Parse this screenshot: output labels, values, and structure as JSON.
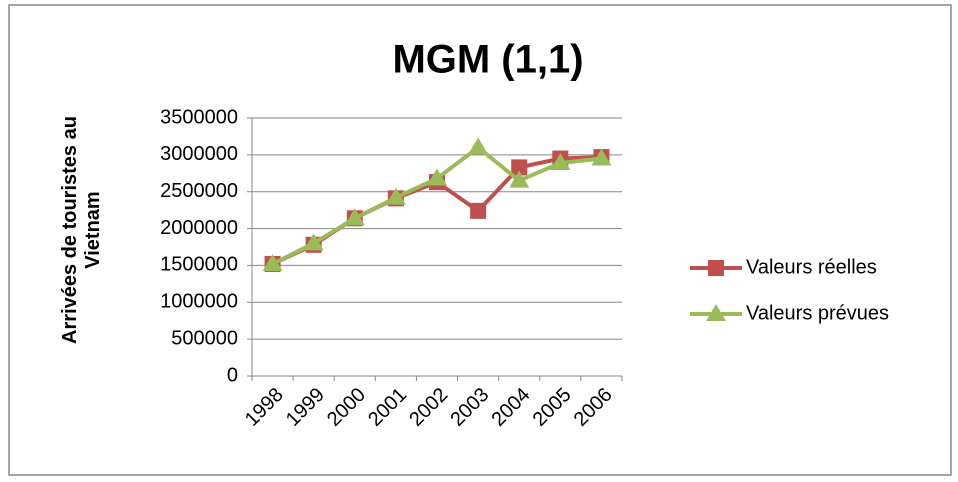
{
  "chart_data": {
    "type": "line",
    "title": "MGM (1,1)",
    "y_label": "Arrivées de touristes au Vietnam",
    "categories": [
      "1998",
      "1999",
      "2000",
      "2001",
      "2002",
      "2003",
      "2004",
      "2005",
      "2006"
    ],
    "series": [
      {
        "name": "Valeurs réelles",
        "color": "#c0504d",
        "marker": "square",
        "values": [
          1520000,
          1780000,
          2140000,
          2410000,
          2630000,
          2240000,
          2830000,
          2950000,
          2970000
        ]
      },
      {
        "name": "Valeurs prévues",
        "color": "#9bbb59",
        "marker": "triangle",
        "values": [
          1520000,
          1800000,
          2140000,
          2420000,
          2680000,
          3100000,
          2650000,
          2890000,
          2950000
        ]
      }
    ],
    "ylim": [
      0,
      3500000
    ],
    "yticks": [
      0,
      500000,
      1000000,
      1500000,
      2000000,
      2500000,
      3000000,
      3500000
    ],
    "grid": true,
    "legend": "right"
  }
}
